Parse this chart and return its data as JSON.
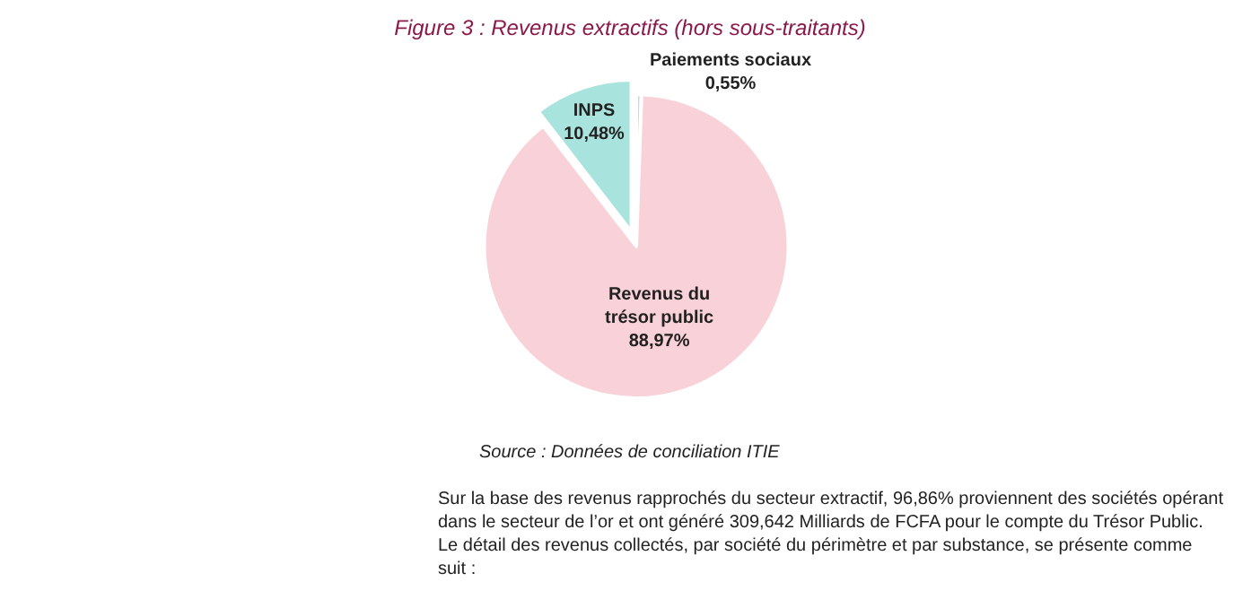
{
  "chart_data": {
    "type": "pie",
    "title": "Figure 3 : Revenus extractifs (hors sous-traitants)",
    "categories": [
      "Paiements sociaux",
      "Revenus du\ntrésor public",
      "INPS"
    ],
    "values": [
      0.55,
      88.97,
      10.48
    ],
    "colors": [
      "#c9d4ea",
      "#f9d1d8",
      "#a8e4dd"
    ],
    "value_labels": [
      "0,55%",
      "88,97%",
      "10,48%"
    ],
    "legend": false,
    "annotations": [
      "Source : Données de conciliation ITIE",
      "Sur la base des revenus rapprochés du secteur extractif, 96,86% proviennent des sociétés opérant\ndans le secteur de l’or et ont généré 309,642 Milliards de FCFA pour le compte du Trésor Public.\nLe détail des revenus collectés, par société du périmètre et par substance, se présente comme\nsuit :"
    ]
  }
}
